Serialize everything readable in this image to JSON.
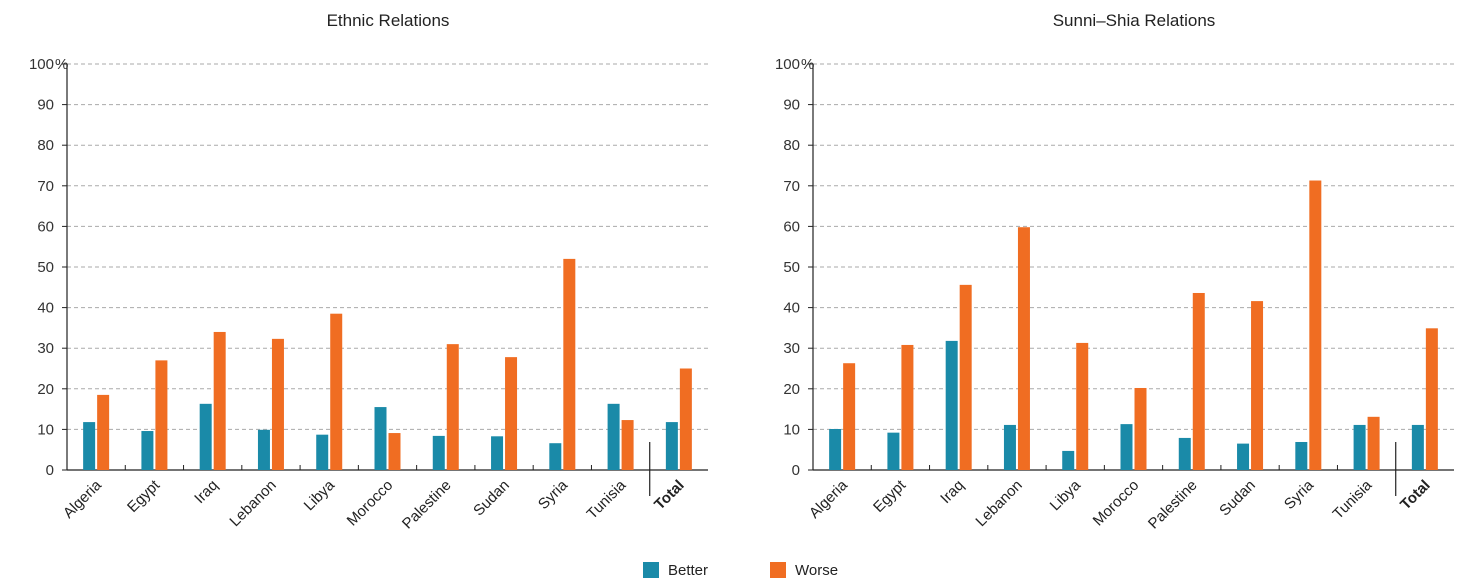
{
  "colors": {
    "better": "#1a8aa8",
    "worse": "#f06d22",
    "grid": "#aaaaaa",
    "axis": "#222222"
  },
  "legend": {
    "better_label": "Better",
    "worse_label": "Worse"
  },
  "chart_data": [
    {
      "type": "bar",
      "title": "Ethnic Relations",
      "categories": [
        "Algeria",
        "Egypt",
        "Iraq",
        "Lebanon",
        "Libya",
        "Morocco",
        "Palestine",
        "Sudan",
        "Syria",
        "Tunisia",
        "Total"
      ],
      "series": [
        {
          "name": "Better",
          "values": [
            11.8,
            9.6,
            16.3,
            9.9,
            8.7,
            15.5,
            8.4,
            8.3,
            6.6,
            16.3,
            11.8
          ]
        },
        {
          "name": "Worse",
          "values": [
            18.5,
            27.0,
            34.0,
            32.3,
            38.5,
            9.1,
            31.0,
            27.8,
            52.0,
            12.3,
            25.0
          ]
        }
      ],
      "yticks": [
        "0",
        "10",
        "20",
        "30",
        "40",
        "50",
        "60",
        "70",
        "80",
        "90",
        "100"
      ],
      "ylim": [
        0,
        100
      ],
      "y_unit": "%",
      "grid": true
    },
    {
      "type": "bar",
      "title": "Sunni–Shia Relations",
      "categories": [
        "Algeria",
        "Egypt",
        "Iraq",
        "Lebanon",
        "Libya",
        "Morocco",
        "Palestine",
        "Sudan",
        "Syria",
        "Tunisia",
        "Total"
      ],
      "series": [
        {
          "name": "Better",
          "values": [
            10.1,
            9.2,
            31.8,
            11.1,
            4.7,
            11.3,
            7.9,
            6.5,
            6.9,
            11.1,
            11.1
          ]
        },
        {
          "name": "Worse",
          "values": [
            26.3,
            30.8,
            45.6,
            59.8,
            31.3,
            20.2,
            43.6,
            41.6,
            71.3,
            13.1,
            34.9
          ]
        }
      ],
      "yticks": [
        "0",
        "10",
        "20",
        "30",
        "40",
        "50",
        "60",
        "70",
        "80",
        "90",
        "100"
      ],
      "ylim": [
        0,
        100
      ],
      "y_unit": "%",
      "grid": true
    }
  ]
}
